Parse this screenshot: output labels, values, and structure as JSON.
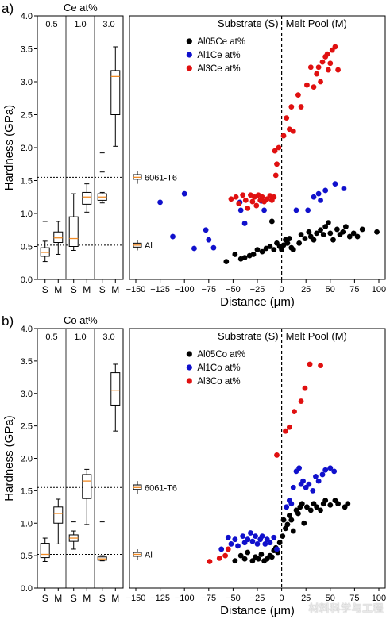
{
  "watermark": "材料科学与工程",
  "chart_data": [
    {
      "panel_label": "a)",
      "type": "scatter",
      "ylabel": "Hardness (GPa)",
      "xlabel": "Distance (μm)",
      "ylim": [
        0,
        4.0
      ],
      "yticks": [
        "0.0",
        "0.5",
        "1.0",
        "1.5",
        "2.0",
        "2.5",
        "3.0",
        "3.5",
        "4.0"
      ],
      "xlim": [
        -150,
        100
      ],
      "xticks": [
        "-150",
        "-125",
        "-100",
        "-75",
        "-50",
        "-25",
        "0",
        "25",
        "50",
        "75",
        "100"
      ],
      "region_labels": [
        "Substrate (S)",
        "Melt Pool (M)"
      ],
      "reference_lines": [
        {
          "label": "6061-T6",
          "value": 1.55
        },
        {
          "label": "Al",
          "value": 0.52
        }
      ],
      "reference_boxes": [
        {
          "label": "6061-T6",
          "q1": 1.52,
          "median": 1.55,
          "q3": 1.59,
          "wmin": 1.45,
          "wmax": 1.65
        },
        {
          "label": "Al",
          "q1": 0.49,
          "median": 0.52,
          "q3": 0.55,
          "wmin": 0.44,
          "wmax": 0.6
        }
      ],
      "box_title": "Ce at%",
      "box_groups": [
        "0.5",
        "1.0",
        "3.0"
      ],
      "box_xticks": [
        "S",
        "M",
        "S",
        "M",
        "S",
        "M"
      ],
      "boxes": [
        {
          "group": "0.5",
          "side": "S",
          "q1": 0.35,
          "median": 0.41,
          "q3": 0.48,
          "wmin": 0.27,
          "wmax": 0.58,
          "fliers": [
            0.88
          ]
        },
        {
          "group": "0.5",
          "side": "M",
          "q1": 0.56,
          "median": 0.63,
          "q3": 0.72,
          "wmin": 0.38,
          "wmax": 0.88,
          "fliers": []
        },
        {
          "group": "1.0",
          "side": "S",
          "q1": 0.5,
          "median": 0.62,
          "q3": 0.95,
          "wmin": 0.44,
          "wmax": 1.3,
          "fliers": []
        },
        {
          "group": "1.0",
          "side": "M",
          "q1": 1.14,
          "median": 1.25,
          "q3": 1.32,
          "wmin": 1.02,
          "wmax": 1.45,
          "fliers": []
        },
        {
          "group": "3.0",
          "side": "S",
          "q1": 1.2,
          "median": 1.25,
          "q3": 1.3,
          "wmin": 1.16,
          "wmax": 1.32,
          "fliers": [
            1.63,
            1.92
          ]
        },
        {
          "group": "3.0",
          "side": "M",
          "q1": 2.5,
          "median": 3.08,
          "q3": 3.17,
          "wmin": 2.02,
          "wmax": 3.53,
          "fliers": []
        }
      ],
      "series": [
        {
          "name": "Al05Ce at%",
          "color": "#000000",
          "points": [
            [
              -57,
              0.27
            ],
            [
              -48,
              0.38
            ],
            [
              -42,
              0.31
            ],
            [
              -38,
              0.33
            ],
            [
              -33,
              0.36
            ],
            [
              -29,
              0.38
            ],
            [
              -25,
              0.45
            ],
            [
              -20,
              0.42
            ],
            [
              -16,
              0.47
            ],
            [
              -12,
              0.5
            ],
            [
              -10,
              0.88
            ],
            [
              -8,
              0.45
            ],
            [
              -5,
              0.55
            ],
            [
              -2,
              0.5
            ],
            [
              0,
              0.45
            ],
            [
              2,
              0.52
            ],
            [
              4,
              0.6
            ],
            [
              6,
              0.55
            ],
            [
              8,
              0.62
            ],
            [
              10,
              0.48
            ],
            [
              12,
              0.45
            ],
            [
              18,
              0.55
            ],
            [
              20,
              0.68
            ],
            [
              24,
              0.62
            ],
            [
              28,
              0.72
            ],
            [
              30,
              0.65
            ],
            [
              33,
              0.6
            ],
            [
              36,
              0.7
            ],
            [
              40,
              0.75
            ],
            [
              43,
              0.68
            ],
            [
              45,
              0.8
            ],
            [
              48,
              0.86
            ],
            [
              50,
              0.7
            ],
            [
              53,
              0.6
            ],
            [
              57,
              0.76
            ],
            [
              60,
              0.68
            ],
            [
              63,
              0.72
            ],
            [
              66,
              0.8
            ],
            [
              70,
              0.65
            ],
            [
              74,
              0.7
            ],
            [
              78,
              0.65
            ],
            [
              83,
              0.76
            ],
            [
              98,
              0.72
            ]
          ]
        },
        {
          "name": "Al1Ce at%",
          "color": "#1010cc",
          "points": [
            [
              -125,
              1.17
            ],
            [
              -100,
              1.3
            ],
            [
              -112,
              0.65
            ],
            [
              -90,
              0.47
            ],
            [
              -78,
              0.75
            ],
            [
              -75,
              0.6
            ],
            [
              -70,
              0.48
            ],
            [
              -43,
              1.17
            ],
            [
              -42,
              1.05
            ],
            [
              -38,
              0.85
            ],
            [
              -21,
              1.19
            ],
            [
              -18,
              1.05
            ],
            [
              15,
              1.05
            ],
            [
              27,
              1.05
            ],
            [
              33,
              1.25
            ],
            [
              38,
              1.3
            ],
            [
              40,
              1.2
            ],
            [
              45,
              1.35
            ],
            [
              55,
              1.45
            ],
            [
              64,
              1.38
            ]
          ]
        },
        {
          "name": "Al3Ce at%",
          "color": "#e01010",
          "points": [
            [
              -52,
              1.22
            ],
            [
              -47,
              1.25
            ],
            [
              -44,
              1.15
            ],
            [
              -40,
              1.28
            ],
            [
              -37,
              1.2
            ],
            [
              -35,
              1.08
            ],
            [
              -32,
              1.28
            ],
            [
              -30,
              1.18
            ],
            [
              -28,
              1.25
            ],
            [
              -26,
              1.12
            ],
            [
              -24,
              1.28
            ],
            [
              -22,
              1.2
            ],
            [
              -20,
              1.25
            ],
            [
              -18,
              1.18
            ],
            [
              -15,
              1.22
            ],
            [
              -12,
              1.27
            ],
            [
              -10,
              1.2
            ],
            [
              -8,
              1.25
            ],
            [
              -6,
              1.58
            ],
            [
              -5,
              1.75
            ],
            [
              -7,
              1.95
            ],
            [
              -3,
              2.0
            ],
            [
              2,
              2.18
            ],
            [
              5,
              2.45
            ],
            [
              8,
              2.28
            ],
            [
              10,
              2.62
            ],
            [
              12,
              2.25
            ],
            [
              17,
              2.8
            ],
            [
              20,
              2.62
            ],
            [
              26,
              2.95
            ],
            [
              30,
              3.22
            ],
            [
              33,
              2.92
            ],
            [
              36,
              3.12
            ],
            [
              38,
              3.22
            ],
            [
              40,
              3.0
            ],
            [
              42,
              3.3
            ],
            [
              45,
              3.38
            ],
            [
              47,
              3.42
            ],
            [
              48,
              3.18
            ],
            [
              50,
              3.28
            ],
            [
              52,
              3.48
            ],
            [
              55,
              3.53
            ],
            [
              58,
              3.18
            ]
          ]
        }
      ]
    },
    {
      "panel_label": "b)",
      "type": "scatter",
      "ylabel": "Hardness (GPa)",
      "xlabel": "Distance (μm)",
      "ylim": [
        0,
        4.0
      ],
      "yticks": [
        "0.0",
        "0.5",
        "1.0",
        "1.5",
        "2.0",
        "2.5",
        "3.0",
        "3.5",
        "4.0"
      ],
      "xlim": [
        -150,
        100
      ],
      "xticks": [
        "-150",
        "-125",
        "-100",
        "-75",
        "-50",
        "-25",
        "0",
        "25",
        "50",
        "75",
        "100"
      ],
      "region_labels": [
        "Substrate (S)",
        "Melt Pool (M)"
      ],
      "reference_lines": [
        {
          "label": "6061-T6",
          "value": 1.55
        },
        {
          "label": "Al",
          "value": 0.52
        }
      ],
      "reference_boxes": [
        {
          "label": "6061-T6",
          "q1": 1.52,
          "median": 1.55,
          "q3": 1.59,
          "wmin": 1.45,
          "wmax": 1.65
        },
        {
          "label": "Al",
          "q1": 0.49,
          "median": 0.52,
          "q3": 0.55,
          "wmin": 0.44,
          "wmax": 0.6
        }
      ],
      "box_title": "Co at%",
      "box_groups": [
        "0.5",
        "1.0",
        "3.0"
      ],
      "box_xticks": [
        "S",
        "M",
        "S",
        "M",
        "S",
        "M"
      ],
      "boxes": [
        {
          "group": "0.5",
          "side": "S",
          "q1": 0.47,
          "median": 0.52,
          "q3": 0.69,
          "wmin": 0.41,
          "wmax": 0.77,
          "fliers": []
        },
        {
          "group": "0.5",
          "side": "M",
          "q1": 1.0,
          "median": 1.15,
          "q3": 1.25,
          "wmin": 0.68,
          "wmax": 1.37,
          "fliers": []
        },
        {
          "group": "1.0",
          "side": "S",
          "q1": 0.72,
          "median": 0.77,
          "q3": 0.82,
          "wmin": 0.6,
          "wmax": 0.88,
          "fliers": [
            1.02
          ]
        },
        {
          "group": "1.0",
          "side": "M",
          "q1": 1.38,
          "median": 1.65,
          "q3": 1.75,
          "wmin": 0.98,
          "wmax": 1.83,
          "fliers": []
        },
        {
          "group": "3.0",
          "side": "S",
          "q1": 0.43,
          "median": 0.45,
          "q3": 0.48,
          "wmin": 0.42,
          "wmax": 0.5,
          "fliers": [
            1.02
          ]
        },
        {
          "group": "3.0",
          "side": "M",
          "q1": 2.82,
          "median": 3.05,
          "q3": 3.32,
          "wmin": 2.42,
          "wmax": 3.45,
          "fliers": []
        }
      ],
      "series": [
        {
          "name": "Al05Co at%",
          "color": "#000000",
          "points": [
            [
              -48,
              0.42
            ],
            [
              -42,
              0.5
            ],
            [
              -38,
              0.45
            ],
            [
              -35,
              0.55
            ],
            [
              -30,
              0.42
            ],
            [
              -27,
              0.48
            ],
            [
              -24,
              0.45
            ],
            [
              -21,
              0.52
            ],
            [
              -18,
              0.42
            ],
            [
              -15,
              0.45
            ],
            [
              -12,
              0.5
            ],
            [
              -10,
              0.48
            ],
            [
              -8,
              0.58
            ],
            [
              -6,
              0.62
            ],
            [
              -4,
              0.55
            ],
            [
              -2,
              0.7
            ],
            [
              1,
              0.8
            ],
            [
              2,
              1.05
            ],
            [
              4,
              0.92
            ],
            [
              6,
              0.98
            ],
            [
              8,
              1.12
            ],
            [
              10,
              1.05
            ],
            [
              12,
              0.88
            ],
            [
              15,
              1.2
            ],
            [
              17,
              1.15
            ],
            [
              19,
              1.25
            ],
            [
              21,
              1.3
            ],
            [
              23,
              1.0
            ],
            [
              26,
              1.25
            ],
            [
              30,
              1.2
            ],
            [
              33,
              1.3
            ],
            [
              36,
              1.25
            ],
            [
              40,
              1.2
            ],
            [
              43,
              1.3
            ],
            [
              45,
              1.35
            ],
            [
              50,
              1.28
            ],
            [
              55,
              1.35
            ],
            [
              58,
              1.3
            ],
            [
              65,
              1.25
            ],
            [
              68,
              1.3
            ]
          ]
        },
        {
          "name": "Al1Co at%",
          "color": "#1010cc",
          "points": [
            [
              -62,
              0.6
            ],
            [
              -55,
              0.78
            ],
            [
              -52,
              0.68
            ],
            [
              -48,
              0.75
            ],
            [
              -45,
              0.65
            ],
            [
              -40,
              0.8
            ],
            [
              -38,
              0.7
            ],
            [
              -35,
              0.75
            ],
            [
              -32,
              0.85
            ],
            [
              -30,
              0.72
            ],
            [
              -27,
              0.8
            ],
            [
              -25,
              0.68
            ],
            [
              -22,
              0.75
            ],
            [
              -20,
              0.8
            ],
            [
              -17,
              0.68
            ],
            [
              -15,
              0.75
            ],
            [
              -12,
              0.7
            ],
            [
              -8,
              0.78
            ],
            [
              -5,
              0.6
            ],
            [
              5,
              1.25
            ],
            [
              8,
              1.35
            ],
            [
              10,
              1.3
            ],
            [
              12,
              1.55
            ],
            [
              15,
              1.8
            ],
            [
              18,
              1.85
            ],
            [
              20,
              1.6
            ],
            [
              22,
              1.65
            ],
            [
              25,
              1.55
            ],
            [
              28,
              1.6
            ],
            [
              32,
              1.5
            ],
            [
              35,
              1.72
            ],
            [
              38,
              1.65
            ],
            [
              42,
              1.75
            ],
            [
              45,
              1.82
            ],
            [
              50,
              1.85
            ],
            [
              54,
              1.8
            ]
          ]
        },
        {
          "name": "Al3Co at%",
          "color": "#e01010",
          "points": [
            [
              -74,
              0.41
            ],
            [
              -64,
              0.46
            ],
            [
              -58,
              0.5
            ],
            [
              -55,
              0.6
            ],
            [
              -5,
              2.05
            ],
            [
              4,
              2.42
            ],
            [
              8,
              2.48
            ],
            [
              13,
              2.72
            ],
            [
              20,
              2.88
            ],
            [
              24,
              3.08
            ],
            [
              29,
              3.45
            ],
            [
              40,
              3.43
            ]
          ]
        }
      ]
    }
  ]
}
